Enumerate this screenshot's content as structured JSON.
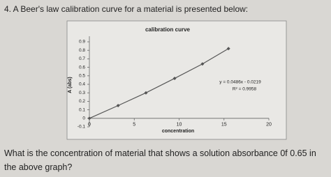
{
  "question_intro": "4.  A Beer's law calibration curve for a material is presented below:",
  "chart_data": {
    "type": "line",
    "title": "calibration curve",
    "x_label": "concentration",
    "y_label": "A (abs)",
    "x": [
      0,
      3.2,
      6.3,
      9.5,
      12.6,
      15.5
    ],
    "series": [
      {
        "name": "absorbance",
        "color": "#555555",
        "values": [
          0,
          0.15,
          0.3,
          0.47,
          0.64,
          0.82
        ]
      }
    ],
    "xlim": [
      0,
      20
    ],
    "xticks": [
      0,
      5,
      10,
      15,
      20
    ],
    "ylim": [
      -0.1,
      0.9
    ],
    "yticks": [
      -0.1,
      0,
      0.1,
      0.2,
      0.3,
      0.4,
      0.5,
      0.6,
      0.7,
      0.8,
      0.9
    ],
    "annotations": [
      "y = 0.0486x - 0.0219",
      "R² = 0.9958"
    ]
  },
  "question": "What is the concentration of material that shows a solution absorbance 0f 0.65 in the above graph?"
}
